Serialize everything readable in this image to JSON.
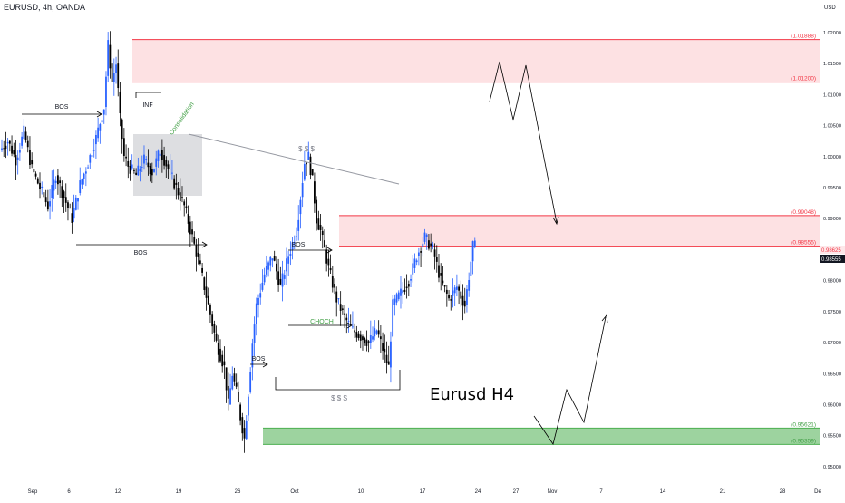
{
  "header": {
    "symbol_line": "EURUSD, 4h, OANDA",
    "currency": "USD"
  },
  "annotation_title": "Eurusd H4",
  "colors": {
    "up_candle": "#2962ff",
    "down_candle": "#000000",
    "supply_zone": "rgba(242,54,69,0.15)",
    "supply_border": "#f23645",
    "demand_zone": "rgba(76,175,80,0.55)",
    "demand_border": "#4caf50",
    "consolidation_box": "rgba(120,123,134,0.25)",
    "trendline": "#9598a1",
    "price_label_bg": "#131722",
    "price_label_red": "#f23645"
  },
  "chart_data": {
    "type": "candlestick",
    "title": "EURUSD, 4h, OANDA",
    "y_axis": {
      "unit": "USD",
      "ylim": [
        0.9475,
        1.0235
      ],
      "ticks": [
        "1.02000",
        "1.01500",
        "1.01000",
        "1.00500",
        "1.00000",
        "0.99500",
        "0.99000",
        "0.98500",
        "0.98000",
        "0.97500",
        "0.97000",
        "0.96500",
        "0.96000",
        "0.95500",
        "0.95000"
      ]
    },
    "x_axis": {
      "ticks": [
        "Sep",
        "6",
        "12",
        "19",
        "26",
        "Oct",
        "10",
        "17",
        "24",
        "27",
        "Nov",
        "7",
        "14",
        "21",
        "28",
        "De"
      ]
    },
    "price_path": [
      [
        0,
        1.001
      ],
      [
        4,
        1.0025
      ],
      [
        8,
        0.9995
      ],
      [
        12,
        1.004
      ],
      [
        16,
        0.998
      ],
      [
        20,
        0.995
      ],
      [
        24,
        0.992
      ],
      [
        28,
        0.997
      ],
      [
        32,
        0.9935
      ],
      [
        36,
        0.99
      ],
      [
        40,
        0.9955
      ],
      [
        44,
        0.999
      ],
      [
        48,
        1.003
      ],
      [
        52,
        1.008
      ],
      [
        54,
        1.018
      ],
      [
        56,
        1.012
      ],
      [
        58,
        1.015
      ],
      [
        60,
        1.006
      ],
      [
        62,
        1.0
      ],
      [
        64,
        0.9985
      ],
      [
        68,
        0.997
      ],
      [
        72,
        0.9995
      ],
      [
        76,
        0.9975
      ],
      [
        80,
        1.001
      ],
      [
        84,
        0.998
      ],
      [
        88,
        0.995
      ],
      [
        92,
        0.992
      ],
      [
        96,
        0.987
      ],
      [
        100,
        0.982
      ],
      [
        104,
        0.976
      ],
      [
        108,
        0.97
      ],
      [
        112,
        0.966
      ],
      [
        114,
        0.96
      ],
      [
        116,
        0.965
      ],
      [
        118,
        0.962
      ],
      [
        120,
        0.958
      ],
      [
        122,
        0.9545
      ],
      [
        124,
        0.962
      ],
      [
        126,
        0.97
      ],
      [
        128,
        0.976
      ],
      [
        132,
        0.981
      ],
      [
        136,
        0.984
      ],
      [
        140,
        0.979
      ],
      [
        144,
        0.984
      ],
      [
        148,
        0.988
      ],
      [
        152,
        0.999
      ],
      [
        154,
        1.0
      ],
      [
        156,
        0.996
      ],
      [
        158,
        0.99
      ],
      [
        160,
        0.988
      ],
      [
        164,
        0.982
      ],
      [
        168,
        0.977
      ],
      [
        172,
        0.974
      ],
      [
        176,
        0.972
      ],
      [
        180,
        0.971
      ],
      [
        184,
        0.97
      ],
      [
        188,
        0.972
      ],
      [
        192,
        0.968
      ],
      [
        194,
        0.966
      ],
      [
        196,
        0.976
      ],
      [
        200,
        0.978
      ],
      [
        204,
        0.98
      ],
      [
        208,
        0.984
      ],
      [
        212,
        0.987
      ],
      [
        216,
        0.985
      ],
      [
        220,
        0.98
      ],
      [
        224,
        0.977
      ],
      [
        228,
        0.979
      ],
      [
        232,
        0.976
      ],
      [
        236,
        0.9855
      ]
    ],
    "zones": [
      {
        "kind": "supply",
        "label_top": "(1.01888)",
        "label_bottom": "(1.01200)",
        "top": 1.01888,
        "bottom": 1.012
      },
      {
        "kind": "supply",
        "label_top": "(0.99048)",
        "label_bottom": "(0.98555)",
        "top": 0.99048,
        "bottom": 0.98555
      },
      {
        "kind": "demand",
        "label_top": "(0.95621)",
        "label_bottom": "(0.95359)",
        "top": 0.95621,
        "bottom": 0.95359
      }
    ],
    "price_labels": {
      "red_label": "0.98625",
      "current_price": "0.98555"
    },
    "annotations": [
      "BOS",
      "BOS",
      "INF",
      "Consolidation",
      "$ $ $",
      "BOS",
      "CHOCH",
      "BOS",
      "$ $ $"
    ]
  }
}
